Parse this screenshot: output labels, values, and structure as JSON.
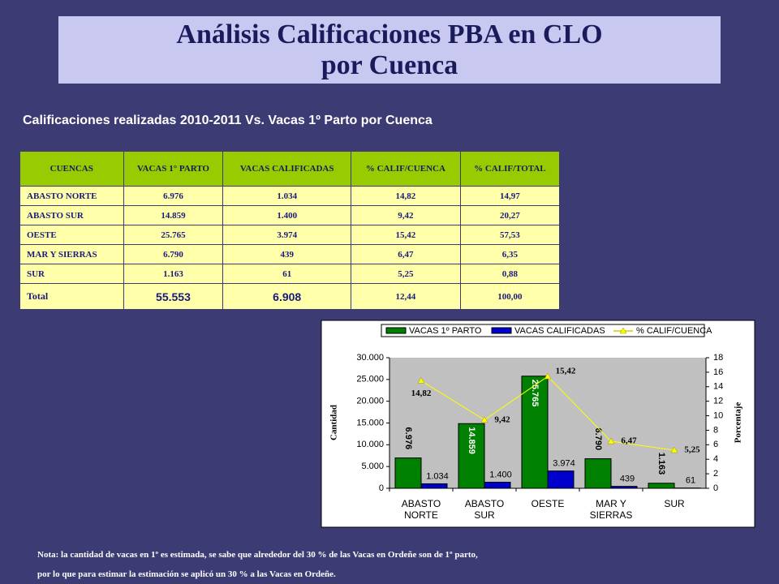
{
  "header": {
    "title_lines": [
      "Análisis Calificaciones PBA en CLO",
      "por Cuenca"
    ]
  },
  "subtitle": "Calificaciones realizadas 2010-2011 Vs. Vacas 1º Parto por Cuenca",
  "table": {
    "header": [
      "CUENCAS",
      "VACAS 1° PARTO",
      "VACAS CALIFICADAS",
      "% CALIF/CUENCA",
      "% CALIF/TOTAL"
    ],
    "rows": [
      [
        "ABASTO NORTE",
        "6.976",
        "1.034",
        "14,82",
        "14,97"
      ],
      [
        "ABASTO SUR",
        "14.859",
        "1.400",
        "9,42",
        "20,27"
      ],
      [
        "OESTE",
        "25.765",
        "3.974",
        "15,42",
        "57,53"
      ],
      [
        "MAR Y SIERRAS",
        "6.790",
        "439",
        "6,47",
        "6,35"
      ],
      [
        "SUR",
        "1.163",
        "61",
        "5,25",
        "0,88"
      ],
      [
        "Total",
        "55.553",
        "6.908",
        "12,44",
        "100,00"
      ]
    ]
  },
  "chart_data": {
    "type": "bar-line",
    "categories": [
      "ABASTO NORTE",
      "ABASTO SUR",
      "OESTE",
      "MAR Y SIERRAS",
      "SUR"
    ],
    "y_label": "Cantidad",
    "y2_label": "Porcentaje",
    "ylim": [
      0,
      30000
    ],
    "yticks": [
      {
        "value": 0,
        "label": "0"
      },
      {
        "value": 5000,
        "label": "5.000"
      },
      {
        "value": 10000,
        "label": "10.000"
      },
      {
        "value": 15000,
        "label": "15.000"
      },
      {
        "value": 20000,
        "label": "20.000"
      },
      {
        "value": 25000,
        "label": "25.000"
      },
      {
        "value": 30000,
        "label": "30.000"
      }
    ],
    "y2lim": [
      0,
      18
    ],
    "y2ticks": [
      0,
      2,
      4,
      6,
      8,
      10,
      12,
      14,
      16,
      18
    ],
    "series": [
      {
        "name": "VACAS 1º PARTO",
        "color": "#008000",
        "type": "bar",
        "values": [
          6976,
          14859,
          25765,
          6790,
          1163
        ],
        "value_labels": [
          "6.976",
          "14.859",
          "25.765",
          "6.790",
          "1.163"
        ]
      },
      {
        "name": "VACAS CALIFICADAS",
        "color": "#0000cc",
        "type": "bar",
        "values": [
          1034,
          1400,
          3974,
          439,
          61
        ],
        "value_labels": [
          "1.034",
          "1.400",
          "3.974",
          "439",
          "61"
        ]
      },
      {
        "name": "% CALIF/CUENCA",
        "color": "#ffff00",
        "type": "line",
        "axis": "y2",
        "values": [
          14.82,
          9.42,
          15.42,
          6.47,
          5.25
        ],
        "value_labels": [
          "14,82",
          "9,42",
          "15,42",
          "6,47",
          "5,25"
        ]
      }
    ]
  },
  "notes": [
    "Nota: la cantidad de vacas en 1º es estimada, se sabe que alrededor del 30 % de las Vacas en Ordeñe son de 1º parto,",
    "por lo que para estimar la estimación se aplicó un 30 % a las Vacas en Ordeñe."
  ]
}
